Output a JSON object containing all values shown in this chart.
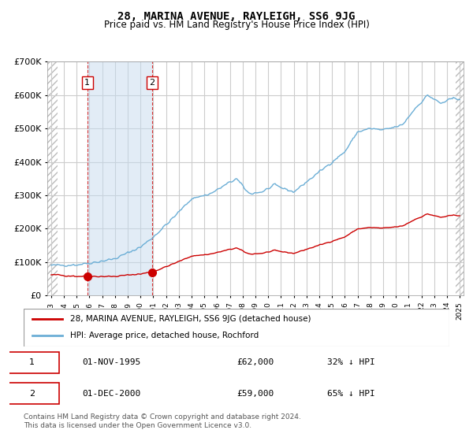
{
  "title": "28, MARINA AVENUE, RAYLEIGH, SS6 9JG",
  "subtitle": "Price paid vs. HM Land Registry's House Price Index (HPI)",
  "legend_line1": "28, MARINA AVENUE, RAYLEIGH, SS6 9JG (detached house)",
  "legend_line2": "HPI: Average price, detached house, Rochford",
  "transaction1_label": "1",
  "transaction1_date": "01-NOV-1995",
  "transaction1_price": "£62,000",
  "transaction1_hpi": "32% ↓ HPI",
  "transaction2_label": "2",
  "transaction2_date": "01-DEC-2000",
  "transaction2_price": "£59,000",
  "transaction2_hpi": "65% ↓ HPI",
  "footnote": "Contains HM Land Registry data © Crown copyright and database right 2024.\nThis data is licensed under the Open Government Licence v3.0.",
  "hpi_color": "#6baed6",
  "price_color": "#cc0000",
  "marker_color": "#cc0000",
  "vline_color": "#cc0000",
  "shade_color": "#c6dbef",
  "hatch_color": "#aaaaaa",
  "background_color": "#ffffff",
  "grid_color": "#cccccc",
  "ylim": [
    0,
    700000
  ],
  "yticks": [
    0,
    100000,
    200000,
    300000,
    400000,
    500000,
    600000,
    700000
  ],
  "ytick_labels": [
    "£0",
    "£100K",
    "£200K",
    "£300K",
    "£400K",
    "£500K",
    "£600K",
    "£700K"
  ],
  "xstart_year": 1993,
  "xend_year": 2025,
  "transaction1_year": 1995.833,
  "transaction2_year": 2000.917
}
